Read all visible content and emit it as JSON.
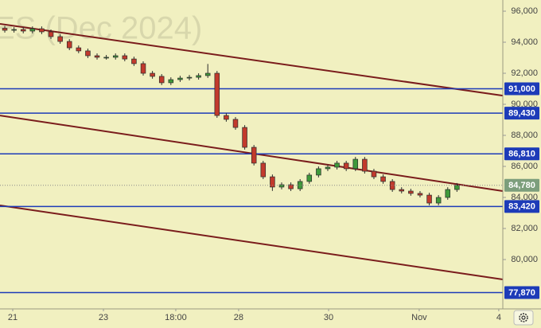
{
  "chart_data": {
    "type": "candlestick",
    "title": "ES (Dec 2024)",
    "xlim": [
      -0.52,
      53.97
    ],
    "xticks": [
      {
        "value": 0.86,
        "label": "21"
      },
      {
        "value": 10.69,
        "label": "23"
      },
      {
        "value": 18.53,
        "label": "18:00"
      },
      {
        "value": 25.34,
        "label": "28"
      },
      {
        "value": 35.09,
        "label": "30"
      },
      {
        "value": 44.91,
        "label": "Nov"
      },
      {
        "value": 53.53,
        "label": "4"
      }
    ],
    "ylim": [
      76820,
      96720
    ],
    "yticks": [
      {
        "value": 80000,
        "label": "80,000"
      },
      {
        "value": 82000,
        "label": "82,000"
      },
      {
        "value": 84000,
        "label": "84,000"
      },
      {
        "value": 86000,
        "label": "86,000"
      },
      {
        "value": 88000,
        "label": "88,000"
      },
      {
        "value": 90000,
        "label": "90,000"
      },
      {
        "value": 92000,
        "label": "92,000"
      },
      {
        "value": 94000,
        "label": "94,000"
      },
      {
        "value": 96000,
        "label": "96,000"
      }
    ],
    "up_color": "#3f9a3a",
    "down_color": "#c23a2c",
    "open": [
      94900,
      94770,
      94820,
      94720,
      94870,
      94670,
      94360,
      94050,
      93640,
      93440,
      93130,
      93030,
      93030,
      93130,
      92920,
      92620,
      92000,
      91800,
      91390,
      91590,
      91690,
      91740,
      91850,
      92000,
      89280,
      89030,
      88510,
      87230,
      86210,
      85330,
      84670,
      84820,
      84560,
      85030,
      85440,
      85850,
      85950,
      86210,
      85850,
      86460,
      85690,
      85330,
      85030,
      84510,
      84410,
      84260,
      84150,
      83640,
      84000,
      84510
    ],
    "high": [
      95050,
      94970,
      94970,
      95020,
      95020,
      94820,
      94510,
      94200,
      93790,
      93590,
      93280,
      93180,
      93280,
      93280,
      93070,
      92770,
      92150,
      91950,
      91740,
      91840,
      91890,
      92000,
      92600,
      92150,
      89430,
      89180,
      88660,
      87380,
      86360,
      85480,
      84970,
      84970,
      85180,
      85590,
      86000,
      86100,
      86360,
      86360,
      86610,
      86610,
      85840,
      85480,
      85180,
      84660,
      84560,
      84410,
      84300,
      84150,
      84660,
      84930
    ],
    "low": [
      94620,
      94620,
      94570,
      94570,
      94520,
      94210,
      93900,
      93490,
      93290,
      92980,
      92880,
      92880,
      92880,
      92770,
      92470,
      91850,
      91650,
      91240,
      91240,
      91440,
      91540,
      91590,
      91700,
      89130,
      88880,
      88360,
      87080,
      86060,
      85180,
      84420,
      84520,
      84410,
      84410,
      84880,
      85290,
      85700,
      85800,
      85700,
      85700,
      85540,
      85180,
      84880,
      84360,
      84260,
      84110,
      84000,
      83490,
      83490,
      83850,
      84360
    ],
    "close": [
      94770,
      94820,
      94720,
      94870,
      94670,
      94360,
      94050,
      93640,
      93440,
      93130,
      93030,
      93030,
      93130,
      92920,
      92620,
      92000,
      91800,
      91390,
      91590,
      91690,
      91740,
      91850,
      92000,
      89280,
      89030,
      88510,
      87230,
      86210,
      85330,
      84670,
      84820,
      84560,
      85030,
      85440,
      85850,
      85950,
      86210,
      85850,
      86460,
      85690,
      85330,
      85030,
      84510,
      84410,
      84260,
      84150,
      83640,
      84000,
      84510,
      84780
    ],
    "levels": [
      {
        "value": 91000,
        "label": "91,000"
      },
      {
        "value": 89430,
        "label": "89,430"
      },
      {
        "value": 86810,
        "label": "86,810"
      },
      {
        "value": 83420,
        "label": "83,420"
      },
      {
        "value": 77870,
        "label": "77,870"
      }
    ],
    "level_color": "#1d3bb8",
    "last_price": {
      "value": 84780,
      "label": "84,780"
    },
    "last_price_color": "#7c9e7c",
    "trendlines": [
      {
        "start": 95180,
        "end": 90560
      },
      {
        "start": 89280,
        "end": 84410
      },
      {
        "start": 83490,
        "end": 78720
      }
    ],
    "trendline_color": "#7a1c1c"
  }
}
